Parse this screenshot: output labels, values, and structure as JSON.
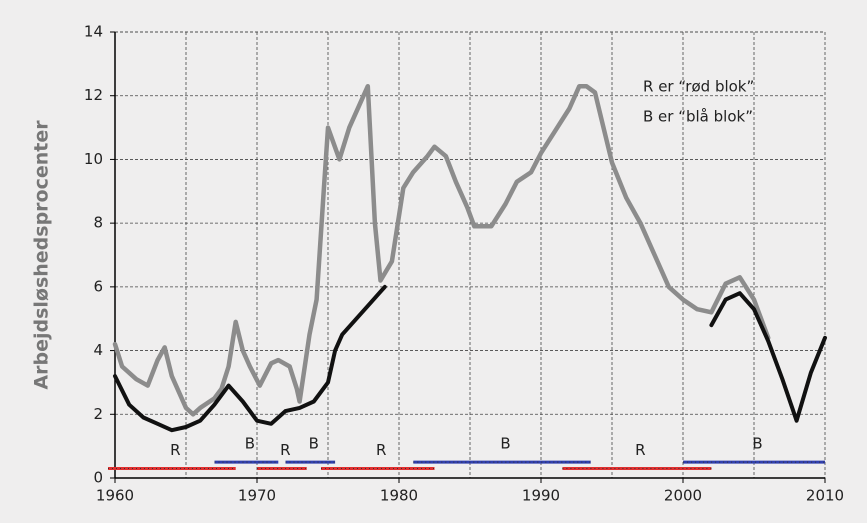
{
  "chart_data": {
    "type": "line",
    "y_label": "Arbejdsløshedsprocenter",
    "annotations": [
      "R er “rød blok”",
      "B er “blå blok”"
    ],
    "xlim": [
      1960,
      2010
    ],
    "xticks": [
      1960,
      1970,
      1980,
      1990,
      2000,
      2010
    ],
    "xminorticks": [
      1965,
      1975,
      1985,
      1995,
      2005
    ],
    "ylim": [
      0,
      14
    ],
    "yticks": [
      0,
      2,
      4,
      6,
      8,
      10,
      12,
      14
    ],
    "grid": true,
    "series": [
      {
        "color": "#8c8c8c",
        "x": [
          1960,
          1960.5,
          1961.5,
          1962.3,
          1963,
          1963.5,
          1964,
          1965,
          1965.5,
          1966,
          1967,
          1967.5,
          1968,
          1968.5,
          1969,
          1969.5,
          1970.2,
          1971,
          1971.5,
          1972.3,
          1972.8,
          1973,
          1973.7,
          1974.2,
          1974.7,
          1975,
          1975.8,
          1976.5,
          1977.8,
          1978.3,
          1978.7,
          1979.5,
          1980.3,
          1981,
          1982,
          1982.5,
          1983.3,
          1984,
          1984.8,
          1985.3,
          1986.5,
          1987.5,
          1988.3,
          1989.3,
          1990,
          1991,
          1992,
          1992.7,
          1993.2,
          1993.8,
          1994.4,
          1995,
          1996,
          1997,
          1998,
          1999,
          2000,
          2001,
          2002,
          2003,
          2004,
          2005,
          2006
        ],
        "values": [
          4.2,
          3.5,
          3.1,
          2.9,
          3.7,
          4.1,
          3.2,
          2.2,
          2.0,
          2.2,
          2.5,
          2.8,
          3.5,
          4.9,
          4.0,
          3.5,
          2.9,
          3.6,
          3.7,
          3.5,
          2.8,
          2.4,
          4.5,
          5.6,
          9,
          11,
          10,
          11,
          12.3,
          8,
          6.2,
          6.8,
          9.1,
          9.6,
          10.1,
          10.4,
          10.1,
          9.3,
          8.5,
          7.9,
          7.9,
          8.6,
          9.3,
          9.6,
          10.2,
          10.9,
          11.6,
          12.3,
          12.3,
          12.1,
          11.0,
          9.9,
          8.8,
          8.0,
          7.0,
          6.0,
          5.6,
          5.3,
          5.2,
          6.1,
          6.3,
          5.6,
          4.4
        ]
      },
      {
        "color": "#111111",
        "x": [
          1960,
          1961,
          1962,
          1963,
          1964,
          1965,
          1966,
          1967,
          1968,
          1969,
          1970,
          1971,
          1972,
          1973,
          1974,
          1975,
          1975.5,
          1976,
          1977,
          1978,
          1979,
          1990,
          2002,
          2003,
          2004,
          2005,
          2006,
          2007,
          2008,
          2009,
          2010
        ],
        "values": [
          3.2,
          2.3,
          1.9,
          1.7,
          1.5,
          1.6,
          1.8,
          2.3,
          2.9,
          2.4,
          1.8,
          1.7,
          2.1,
          2.2,
          2.4,
          3.0,
          4.0,
          4.5,
          5.0,
          5.5,
          6.0,
          null,
          4.8,
          5.6,
          5.8,
          5.3,
          4.3,
          3.1,
          1.8,
          3.3,
          4.4
        ]
      }
    ],
    "periods": [
      {
        "label": "R",
        "start": 1960,
        "end": 1968.5,
        "level": 0.3,
        "color": "#e03030"
      },
      {
        "label": "B",
        "start": 1967.5,
        "end": 1971.5,
        "level": 0.5,
        "color": "#3040b0"
      },
      {
        "label": "R",
        "start": 1970.5,
        "end": 1973.5,
        "level": 0.3,
        "color": "#e03030"
      },
      {
        "label": "B",
        "start": 1972.5,
        "end": 1975.5,
        "level": 0.5,
        "color": "#3040b0"
      },
      {
        "label": "R",
        "start": 1975,
        "end": 1982.5,
        "level": 0.3,
        "color": "#e03030"
      },
      {
        "label": "B",
        "start": 1981.5,
        "end": 1993.5,
        "level": 0.5,
        "color": "#3040b0"
      },
      {
        "label": "R",
        "start": 1992,
        "end": 2002,
        "level": 0.3,
        "color": "#e03030"
      },
      {
        "label": "B",
        "start": 2000.5,
        "end": 2010,
        "level": 0.5,
        "color": "#3040b0"
      }
    ]
  }
}
